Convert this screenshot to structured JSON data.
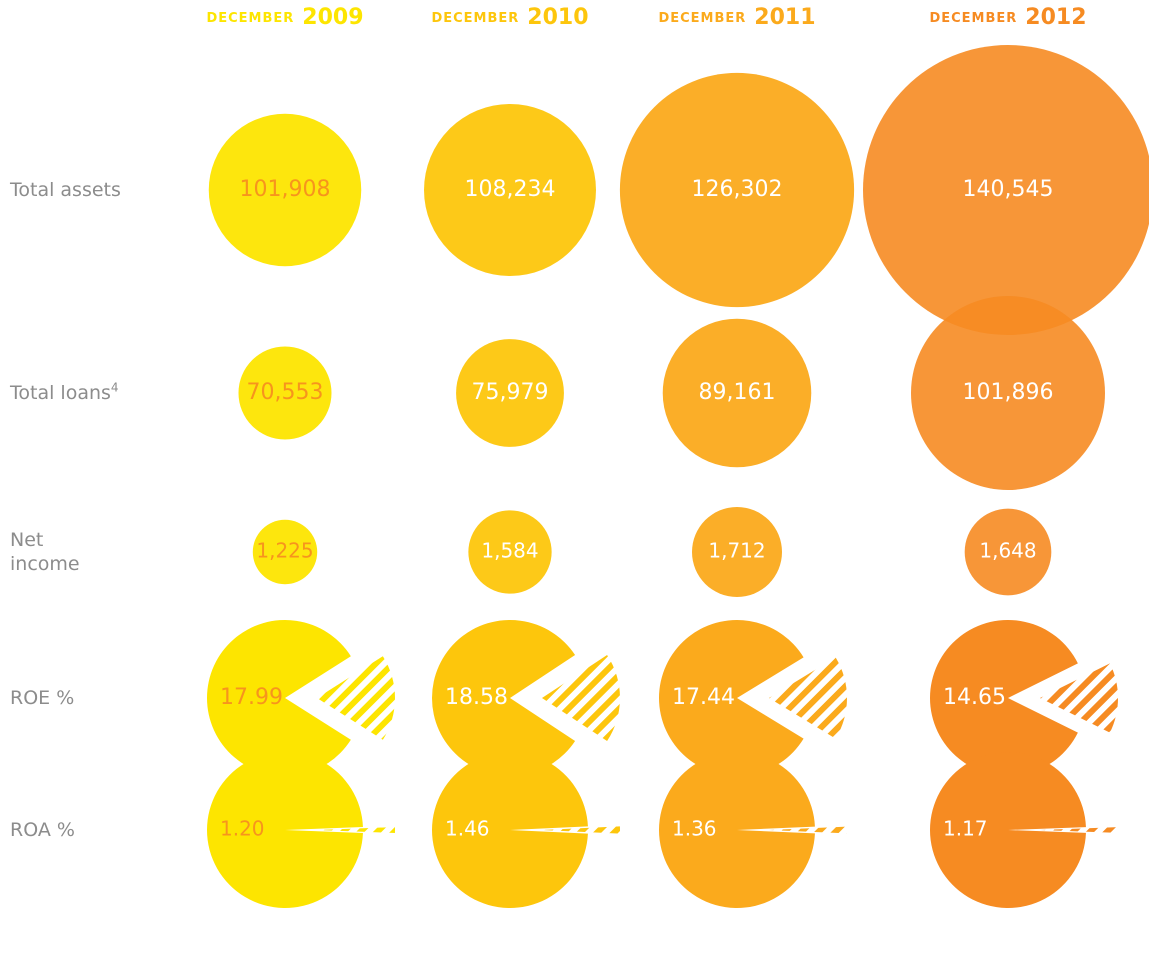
{
  "chart_data": {
    "type": "bubble",
    "month": "december",
    "categories": [
      "2009",
      "2010",
      "2011",
      "2012"
    ],
    "colors": [
      "#fde500",
      "#fdc60c",
      "#fbaa1c",
      "#f68b22"
    ],
    "label_colors": [
      "#f7941d",
      "#ffffff",
      "#ffffff",
      "#ffffff"
    ],
    "series": [
      {
        "name": "Total assets",
        "type": "bubble",
        "values": [
          101908,
          108234,
          126302,
          140545
        ],
        "value_labels": [
          "101,908",
          "108,234",
          "126,302",
          "140,545"
        ]
      },
      {
        "name": "Total loans",
        "footnote": "4",
        "type": "bubble",
        "values": [
          70553,
          75979,
          89161,
          101896
        ],
        "value_labels": [
          "70,553",
          "75,979",
          "89,161",
          "101,896"
        ]
      },
      {
        "name": "Net income",
        "type": "bubble",
        "values": [
          1225,
          1584,
          1712,
          1648
        ],
        "value_labels": [
          "1,225",
          "1,584",
          "1,712",
          "1,648"
        ]
      },
      {
        "name": "ROE %",
        "type": "pie",
        "values": [
          17.99,
          18.58,
          17.44,
          14.65
        ]
      },
      {
        "name": "ROA %",
        "type": "pie",
        "values": [
          1.2,
          1.46,
          1.36,
          1.17
        ],
        "value_labels": [
          "1.20",
          "1.46",
          "1.36",
          "1.17"
        ]
      }
    ]
  }
}
